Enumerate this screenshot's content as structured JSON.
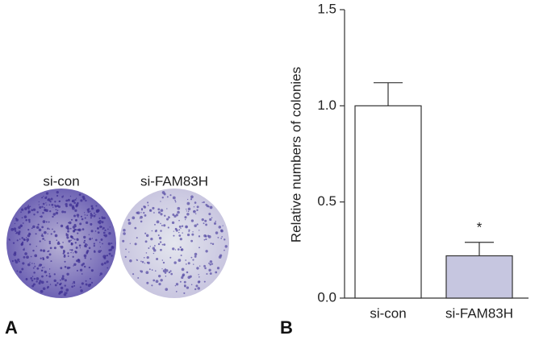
{
  "panel_a": {
    "label": "A",
    "dishes": [
      "si-con",
      "si-FAM83H"
    ]
  },
  "panel_b": {
    "label": "B"
  },
  "chart_data": {
    "type": "bar",
    "y_label": "Relative numbers of colonies",
    "categories": [
      "si-con",
      "si-FAM83H"
    ],
    "values": [
      1.0,
      0.22
    ],
    "errors": [
      0.12,
      0.07
    ],
    "colors": [
      "#ffffff",
      "#c6c6e0"
    ],
    "annotations": [
      null,
      "*"
    ],
    "ylim": [
      0,
      1.5
    ],
    "yticks": [
      {
        "value": 0,
        "label": "0.0"
      },
      {
        "value": 0.5,
        "label": "0.5"
      },
      {
        "value": 1,
        "label": "1.0"
      },
      1.5
    ]
  }
}
